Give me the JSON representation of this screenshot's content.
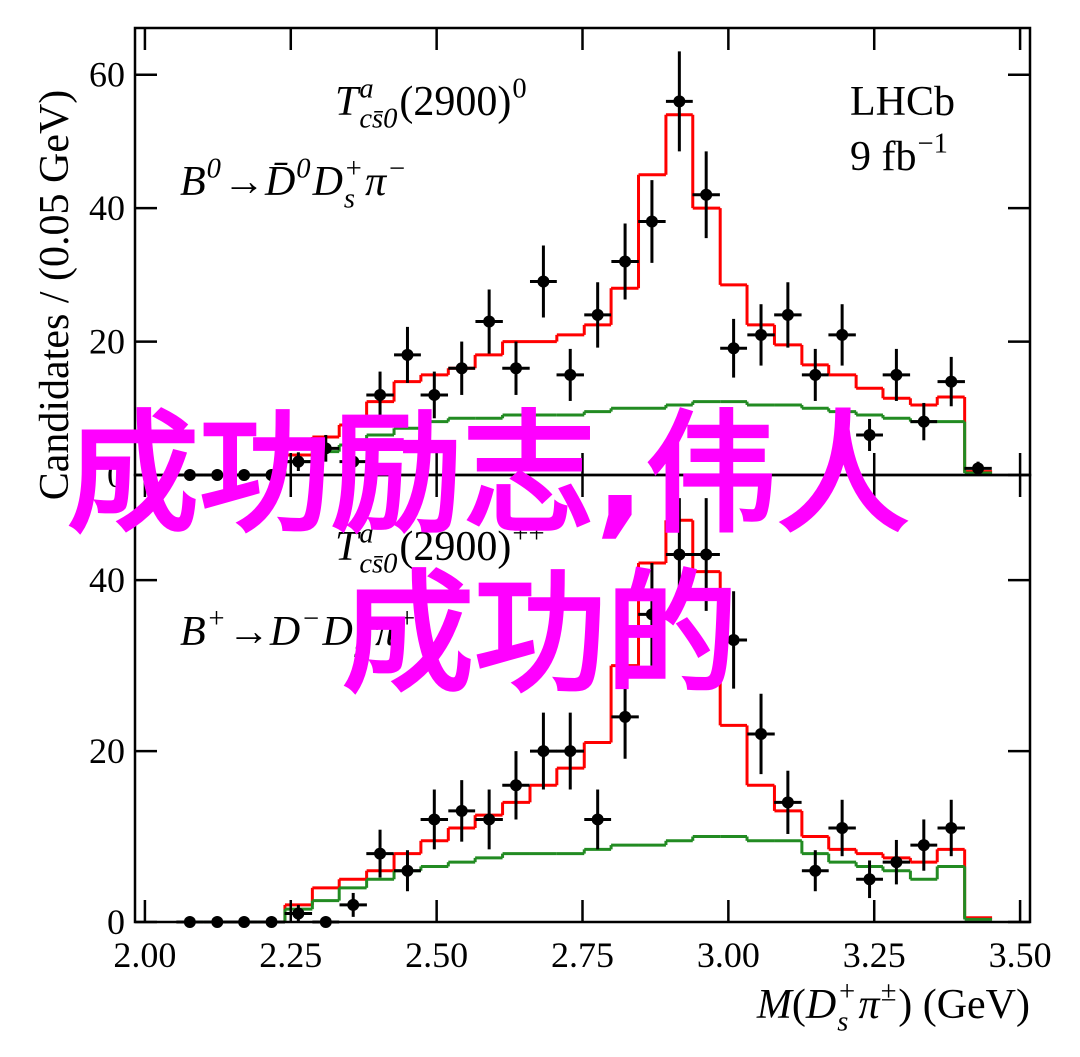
{
  "chart_data": [
    {
      "type": "histogram",
      "ylabel": "Candidates / (0.05 GeV)",
      "xlim": [
        1.983,
        3.517
      ],
      "ylim": [
        0,
        67
      ],
      "xticks": [
        2.0,
        2.25,
        2.5,
        2.75,
        3.0,
        3.25,
        3.5
      ],
      "xticklabels": false,
      "yticks": [
        0,
        20,
        40,
        60
      ],
      "annotations": [
        {
          "parts": [
            {
              "text": "T",
              "italic": true,
              "sup": "a",
              "sub": "cs̄0"
            },
            {
              "text": "(2900)",
              "sup": "0"
            }
          ]
        },
        {
          "parts": [
            {
              "text": "B",
              "italic": true,
              "sup": "0"
            },
            {
              "text": "→"
            },
            {
              "text": "D̄",
              "italic": true,
              "sup": "0"
            },
            {
              "text": "D",
              "italic": true,
              "sup": "+",
              "sub": "s"
            },
            {
              "text": " π",
              "italic": true,
              "sup": "−"
            }
          ]
        },
        {
          "parts": [
            {
              "text": "LHCb"
            }
          ]
        },
        {
          "parts": [
            {
              "text": "9 fb",
              "sup": "−1"
            }
          ]
        }
      ],
      "x": [
        2.077,
        2.124,
        2.17,
        2.217,
        2.263,
        2.31,
        2.357,
        2.403,
        2.45,
        2.496,
        2.543,
        2.59,
        2.636,
        2.683,
        2.729,
        2.776,
        2.823,
        2.869,
        2.916,
        2.962,
        3.009,
        3.056,
        3.102,
        3.149,
        3.195,
        3.242,
        3.288,
        3.335,
        3.382,
        3.428
      ],
      "bins": [
        2.054,
        2.1,
        2.147,
        2.194,
        2.24,
        2.287,
        2.333,
        2.38,
        2.427,
        2.473,
        2.52,
        2.566,
        2.613,
        2.66,
        2.706,
        2.753,
        2.799,
        2.846,
        2.893,
        2.939,
        2.986,
        3.032,
        3.079,
        3.126,
        3.172,
        3.219,
        3.265,
        3.312,
        3.358,
        3.405,
        3.452
      ],
      "points": {
        "color": "#000000",
        "values": [
          0,
          0,
          0,
          0,
          2,
          4,
          2,
          12,
          18,
          12,
          16,
          23,
          16,
          29,
          15,
          24,
          32,
          38,
          56,
          42,
          19,
          21,
          24,
          15,
          21,
          6,
          15,
          8,
          14,
          1
        ],
        "errors": [
          0,
          0,
          0,
          0,
          1.4,
          2,
          1.4,
          3.5,
          4.2,
          3.5,
          4,
          4.8,
          4,
          5.4,
          3.9,
          4.9,
          5.7,
          6.2,
          7.5,
          6.5,
          4.4,
          4.6,
          4.9,
          3.9,
          4.6,
          2.4,
          3.9,
          2.8,
          3.7,
          1
        ]
      },
      "fits": [
        {
          "color": "#ff0000",
          "values": [
            0,
            0,
            0,
            0,
            3,
            5.7,
            7.5,
            11,
            14,
            15,
            16,
            18,
            20,
            20,
            21,
            22.5,
            28,
            45,
            54,
            40,
            28.5,
            22.5,
            19.5,
            16.5,
            15,
            13,
            11.5,
            10.5,
            11.7,
            0.5
          ]
        },
        {
          "color": "#228b22",
          "values": [
            0,
            0,
            0,
            0,
            2,
            3.5,
            4.5,
            6,
            7,
            8,
            8.5,
            8.5,
            9,
            9,
            9,
            9.5,
            10,
            10,
            10.5,
            11,
            11,
            10.5,
            10.5,
            10,
            9.5,
            9,
            8.5,
            8,
            8,
            0.3
          ]
        }
      ]
    },
    {
      "type": "histogram",
      "xlabel": [
        {
          "text": "M",
          "italic": true
        },
        {
          "text": "("
        },
        {
          "text": "D",
          "italic": true,
          "sup": "+",
          "sub": "s"
        },
        {
          "text": " π",
          "italic": true,
          "sup": "±"
        },
        {
          "text": ") (GeV)"
        }
      ],
      "xlim": [
        1.983,
        3.517
      ],
      "ylim": [
        0,
        52.3
      ],
      "xticks": [
        {
          "value": 2.0,
          "label": "2.00"
        },
        2.25,
        {
          "value": 2.5,
          "label": "2.50"
        },
        2.75,
        {
          "value": 3.0,
          "label": "3.00"
        },
        3.25,
        {
          "value": 3.5,
          "label": "3.50"
        }
      ],
      "xticklabels": true,
      "yticks": [
        0,
        20,
        40
      ],
      "annotations": [
        {
          "parts": [
            {
              "text": "T",
              "italic": true,
              "sup": "a",
              "sub": "cs̄0"
            },
            {
              "text": "(2900)",
              "sup": "++"
            }
          ]
        },
        {
          "parts": [
            {
              "text": "B",
              "italic": true,
              "sup": "+"
            },
            {
              "text": "→"
            },
            {
              "text": "D",
              "italic": true,
              "sup": "−"
            },
            {
              "text": "D",
              "italic": true,
              "sup": "+",
              "sub": "s"
            },
            {
              "text": " π",
              "italic": true,
              "sup": "+"
            }
          ]
        }
      ],
      "x": [
        2.077,
        2.124,
        2.17,
        2.217,
        2.263,
        2.31,
        2.357,
        2.403,
        2.45,
        2.496,
        2.543,
        2.59,
        2.636,
        2.683,
        2.729,
        2.776,
        2.823,
        2.869,
        2.916,
        2.962,
        3.009,
        3.056,
        3.102,
        3.149,
        3.195,
        3.242,
        3.288,
        3.335,
        3.382,
        3.428
      ],
      "bins": [
        2.054,
        2.1,
        2.147,
        2.194,
        2.24,
        2.287,
        2.333,
        2.38,
        2.427,
        2.473,
        2.52,
        2.566,
        2.613,
        2.66,
        2.706,
        2.753,
        2.799,
        2.846,
        2.893,
        2.939,
        2.986,
        3.032,
        3.079,
        3.126,
        3.172,
        3.219,
        3.265,
        3.312,
        3.358,
        3.405,
        3.452
      ],
      "points": {
        "color": "#000000",
        "values": [
          0,
          0,
          0,
          0,
          1,
          0,
          2,
          8,
          6,
          12,
          13,
          12,
          16,
          20,
          20,
          12,
          24,
          36,
          43,
          43,
          33,
          22,
          14,
          6,
          11,
          5,
          7,
          9,
          11,
          null
        ],
        "errors": [
          0,
          0,
          0,
          0,
          1,
          0,
          1.4,
          2.8,
          2.4,
          3.5,
          3.6,
          3.5,
          4,
          4.5,
          4.5,
          3.5,
          4.9,
          6,
          6.6,
          6.6,
          5.7,
          4.7,
          3.7,
          2.4,
          3.3,
          2.2,
          2.6,
          3,
          3.3,
          null
        ]
      },
      "fits": [
        {
          "color": "#ff0000",
          "values": [
            0,
            0,
            0,
            0,
            2,
            4,
            5,
            6,
            8,
            9.5,
            11,
            12.5,
            14,
            16,
            18,
            21,
            30,
            42,
            47,
            41,
            23,
            16,
            13,
            10,
            8.5,
            8,
            7.5,
            7,
            8.5,
            0.5
          ]
        },
        {
          "color": "#228b22",
          "values": [
            0,
            0,
            0,
            0,
            1.5,
            2.5,
            4,
            5,
            6,
            6.5,
            7,
            7.5,
            8,
            8,
            8,
            8.5,
            9,
            9,
            9.5,
            10,
            10,
            9.5,
            9.5,
            8,
            7,
            6.5,
            6,
            5,
            6.5,
            0.3
          ]
        }
      ]
    }
  ],
  "overlay": {
    "color": "#ff00ff",
    "lines": [
      "成功励志,伟人",
      "成功的"
    ]
  }
}
